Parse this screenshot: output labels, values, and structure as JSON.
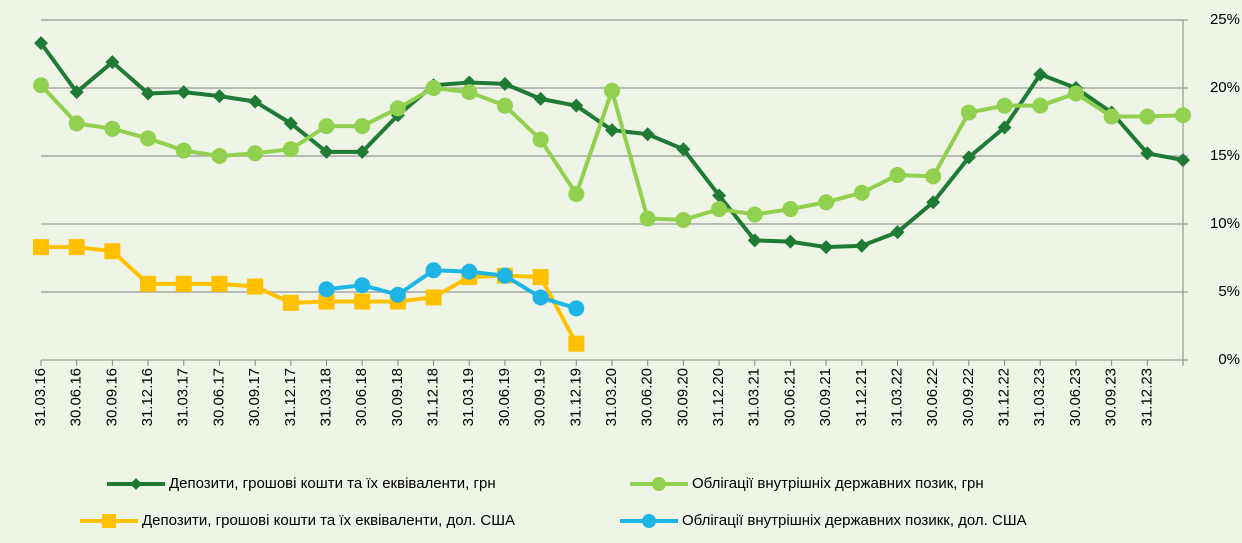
{
  "chart_data": {
    "type": "line",
    "categories": [
      "31.03.16",
      "30.06.16",
      "30.09.16",
      "31.12.16",
      "31.03.17",
      "30.06.17",
      "30.09.17",
      "31.12.17",
      "31.03.18",
      "30.06.18",
      "30.09.18",
      "31.12.18",
      "31.03.19",
      "30.06.19",
      "30.09.19",
      "31.12.19",
      "31.03.20",
      "30.06.20",
      "30.09.20",
      "31.12.20",
      "31.03.21",
      "30.06.21",
      "30.09.21",
      "31.12.21",
      "31.03.22",
      "30.06.22",
      "30.09.22",
      "31.12.22",
      "31.03.23",
      "30.06.23",
      "30.09.23",
      "31.12.23",
      null
    ],
    "series": [
      {
        "name": "Депозити, грошові кошти та їх еквіваленти, грн",
        "color": "#1e7a34",
        "marker": "diamond",
        "values": [
          23.3,
          19.7,
          21.9,
          19.6,
          19.7,
          19.4,
          19.0,
          17.4,
          15.3,
          15.3,
          18.0,
          20.2,
          20.4,
          20.3,
          19.2,
          18.7,
          16.9,
          16.6,
          15.5,
          12.1,
          8.8,
          8.7,
          8.3,
          8.4,
          9.4,
          11.6,
          14.9,
          17.1,
          21.0,
          20.0,
          18.2,
          15.2,
          14.7
        ]
      },
      {
        "name": "Облігації внутрішніх державних позик, грн",
        "color": "#92d050",
        "marker": "circle",
        "values": [
          20.2,
          17.4,
          17.0,
          16.3,
          15.4,
          15.0,
          15.2,
          15.5,
          17.2,
          17.2,
          18.5,
          20.0,
          19.7,
          18.7,
          16.2,
          12.2,
          19.8,
          10.4,
          10.3,
          11.1,
          10.7,
          11.1,
          11.6,
          12.3,
          13.6,
          13.5,
          18.2,
          18.7,
          18.7,
          19.6,
          17.9,
          17.9,
          18.0
        ]
      },
      {
        "name": "Депозити, грошові кошти та їх еквіваленти, дол. США",
        "color": "#ffc000",
        "marker": "square",
        "values": [
          8.3,
          8.3,
          8.0,
          5.6,
          5.6,
          5.6,
          5.4,
          4.2,
          4.3,
          4.3,
          4.3,
          4.6,
          6.1,
          6.2,
          6.1,
          1.2,
          null,
          null,
          null,
          null,
          null,
          null,
          null,
          null,
          null,
          null,
          null,
          null,
          null,
          null,
          null,
          null,
          null
        ]
      },
      {
        "name": "Облігації внутрішніх державних позикк, дол. США",
        "color": "#1fb4e6",
        "marker": "circle",
        "values": [
          null,
          null,
          null,
          null,
          null,
          null,
          null,
          null,
          5.2,
          5.5,
          4.8,
          6.6,
          6.5,
          6.2,
          4.6,
          3.8,
          null,
          null,
          null,
          null,
          null,
          null,
          null,
          null,
          null,
          null,
          null,
          null,
          null,
          null,
          null,
          null,
          null
        ]
      }
    ],
    "ylim": [
      0,
      25
    ],
    "yticks": [
      {
        "value": 0,
        "label": "0%"
      },
      {
        "value": 5,
        "label": "5%"
      },
      {
        "value": 10,
        "label": "10%"
      },
      {
        "value": 15,
        "label": "15%"
      },
      {
        "value": 20,
        "label": "20%"
      },
      {
        "value": 25,
        "label": "25%"
      }
    ],
    "grid": true,
    "legend": "bottom"
  }
}
